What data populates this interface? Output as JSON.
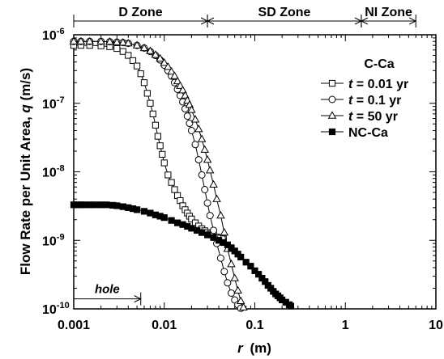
{
  "chart_data": {
    "type": "line",
    "x_scale": "log",
    "y_scale": "log",
    "xlim": [
      0.001,
      10
    ],
    "ylim": [
      1e-10,
      1e-06
    ],
    "xlabel_var": "r",
    "xlabel_unit": "(m)",
    "ylabel_text": "Flow Rate per Unit Area, ",
    "ylabel_var": "q",
    "ylabel_unit": " (m/s)",
    "x_ticks": [
      {
        "value": 0.001,
        "label": "0.001"
      },
      {
        "value": 0.01,
        "label": "0.01"
      },
      {
        "value": 0.1,
        "label": "0.1"
      },
      {
        "value": 1,
        "label": "1"
      },
      {
        "value": 10,
        "label": "10"
      }
    ],
    "y_ticks": [
      {
        "value": 1e-06,
        "base": "10",
        "exp": "-6"
      },
      {
        "value": 1e-07,
        "base": "10",
        "exp": "-7"
      },
      {
        "value": 1e-08,
        "base": "10",
        "exp": "-8"
      },
      {
        "value": 1e-09,
        "base": "10",
        "exp": "-9"
      },
      {
        "value": 1e-10,
        "base": "10",
        "exp": "-10"
      }
    ],
    "zones": [
      {
        "label": "D Zone",
        "from": 0.001,
        "to": 0.03
      },
      {
        "label": "SD Zone",
        "from": 0.03,
        "to": 1.5
      },
      {
        "label": "NI Zone",
        "from": 1.5,
        "to": 6
      }
    ],
    "annotation": {
      "label": "hole",
      "from": 0.001,
      "to": 0.0055,
      "y": 1.4e-10
    },
    "legend": {
      "title": "C-Ca",
      "placement": "right",
      "entries": [
        {
          "var": "t",
          "text": " = 0.01 yr",
          "marker": "square-open"
        },
        {
          "var": "t",
          "text": " = 0.1 yr",
          "marker": "circle-open"
        },
        {
          "var": "t",
          "text": " = 50 yr",
          "marker": "triangle-open"
        },
        {
          "var": "",
          "text": "NC-Ca",
          "marker": "square-filled"
        }
      ]
    },
    "series": [
      {
        "name": "t = 0.01 yr",
        "marker": "square-open",
        "x": [
          0.001,
          0.0012,
          0.0015,
          0.002,
          0.0025,
          0.003,
          0.0035,
          0.004,
          0.0045,
          0.005,
          0.0055,
          0.006,
          0.0065,
          0.007,
          0.0075,
          0.008,
          0.0085,
          0.009,
          0.0095,
          0.01,
          0.011,
          0.012,
          0.013,
          0.014,
          0.015,
          0.016,
          0.017,
          0.018,
          0.019,
          0.02,
          0.022,
          0.024,
          0.026,
          0.028,
          0.03,
          0.032,
          0.035,
          0.038,
          0.042,
          0.045
        ],
        "y": [
          7e-07,
          7e-07,
          7e-07,
          6.9e-07,
          6.7e-07,
          6.3e-07,
          5.7e-07,
          5e-07,
          4.2e-07,
          3.5e-07,
          2.7e-07,
          2e-07,
          1.4e-07,
          1e-07,
          7e-08,
          4.8e-08,
          3.3e-08,
          2.4e-08,
          1.8e-08,
          1.35e-08,
          9e-09,
          7e-09,
          5.5e-09,
          4.5e-09,
          3.8e-09,
          3.2e-09,
          2.8e-09,
          2.5e-09,
          2.25e-09,
          2.05e-09,
          1.8e-09,
          1.62e-09,
          1.48e-09,
          1.38e-09,
          1.3e-09,
          1.24e-09,
          1.18e-09,
          1.12e-09,
          1.08e-09,
          1.05e-09
        ]
      },
      {
        "name": "t = 0.1 yr",
        "marker": "circle-open",
        "x": [
          0.001,
          0.0012,
          0.0015,
          0.002,
          0.0025,
          0.003,
          0.0035,
          0.004,
          0.005,
          0.006,
          0.007,
          0.008,
          0.009,
          0.01,
          0.011,
          0.012,
          0.013,
          0.014,
          0.015,
          0.016,
          0.017,
          0.018,
          0.019,
          0.02,
          0.022,
          0.024,
          0.026,
          0.028,
          0.03,
          0.032,
          0.035,
          0.038,
          0.042,
          0.046,
          0.05,
          0.055,
          0.06,
          0.065,
          0.07
        ],
        "y": [
          8e-07,
          8e-07,
          8e-07,
          8e-07,
          7.9e-07,
          7.8e-07,
          7.7e-07,
          7.5e-07,
          7e-07,
          6.4e-07,
          5.7e-07,
          5e-07,
          4.3e-07,
          3.6e-07,
          3e-07,
          2.5e-07,
          2e-07,
          1.6e-07,
          1.3e-07,
          1.05e-07,
          8.3e-08,
          6.5e-08,
          5.1e-08,
          4e-08,
          2.5e-08,
          1.5e-08,
          9e-09,
          5.5e-09,
          3.5e-09,
          2.3e-09,
          1.4e-09,
          9e-10,
          5.5e-10,
          3.5e-10,
          2.4e-10,
          1.7e-10,
          1.35e-10,
          1.15e-10,
          1.02e-10
        ]
      },
      {
        "name": "t = 50 yr",
        "marker": "triangle-open",
        "x": [
          0.001,
          0.0012,
          0.0015,
          0.002,
          0.0025,
          0.003,
          0.0035,
          0.004,
          0.005,
          0.006,
          0.007,
          0.008,
          0.009,
          0.01,
          0.011,
          0.012,
          0.013,
          0.014,
          0.015,
          0.016,
          0.017,
          0.018,
          0.019,
          0.02,
          0.022,
          0.024,
          0.026,
          0.028,
          0.03,
          0.032,
          0.035,
          0.038,
          0.042,
          0.046,
          0.05,
          0.055,
          0.06,
          0.065,
          0.07,
          0.075
        ],
        "y": [
          8e-07,
          8e-07,
          8e-07,
          8e-07,
          7.9e-07,
          7.8e-07,
          7.7e-07,
          7.5e-07,
          7e-07,
          6.4e-07,
          5.8e-07,
          5.1e-07,
          4.5e-07,
          3.9e-07,
          3.4e-07,
          2.9e-07,
          2.5e-07,
          2.1e-07,
          1.8e-07,
          1.55e-07,
          1.3e-07,
          1.1e-07,
          9.5e-08,
          8e-08,
          5.8e-08,
          4.2e-08,
          3e-08,
          2.1e-08,
          1.5e-08,
          1.05e-08,
          6.5e-09,
          4e-09,
          2.3e-09,
          1.3e-09,
          7.5e-10,
          4.5e-10,
          2.8e-10,
          1.85e-10,
          1.3e-10,
          1.05e-10
        ]
      },
      {
        "name": "NC-Ca",
        "marker": "square-filled",
        "x": [
          0.001,
          0.0011,
          0.0012,
          0.0013,
          0.0015,
          0.0017,
          0.002,
          0.0023,
          0.0027,
          0.003,
          0.0035,
          0.004,
          0.0045,
          0.005,
          0.006,
          0.007,
          0.008,
          0.009,
          0.01,
          0.012,
          0.014,
          0.016,
          0.018,
          0.02,
          0.023,
          0.026,
          0.03,
          0.035,
          0.04,
          0.045,
          0.05,
          0.055,
          0.06,
          0.065,
          0.07,
          0.08,
          0.09,
          0.1,
          0.11,
          0.12,
          0.13,
          0.14,
          0.15,
          0.16,
          0.17,
          0.18,
          0.19,
          0.2,
          0.22,
          0.24,
          0.25
        ],
        "y": [
          3.3e-09,
          3.3e-09,
          3.3e-09,
          3.3e-09,
          3.3e-09,
          3.3e-09,
          3.3e-09,
          3.3e-09,
          3.25e-09,
          3.2e-09,
          3.1e-09,
          3e-09,
          2.9e-09,
          2.8e-09,
          2.65e-09,
          2.5e-09,
          2.35e-09,
          2.25e-09,
          2.15e-09,
          1.95e-09,
          1.8e-09,
          1.7e-09,
          1.6e-09,
          1.5e-09,
          1.4e-09,
          1.3e-09,
          1.2e-09,
          1.1e-09,
          1e-09,
          9.3e-10,
          8.6e-10,
          7.8e-10,
          7e-10,
          6.3e-10,
          5.7e-10,
          4.8e-10,
          4.2e-10,
          3.6e-10,
          3.2e-10,
          2.8e-10,
          2.5e-10,
          2.2e-10,
          2e-10,
          1.8e-10,
          1.65e-10,
          1.55e-10,
          1.45e-10,
          1.35e-10,
          1.25e-10,
          1.15e-10,
          1.1e-10
        ]
      }
    ]
  }
}
